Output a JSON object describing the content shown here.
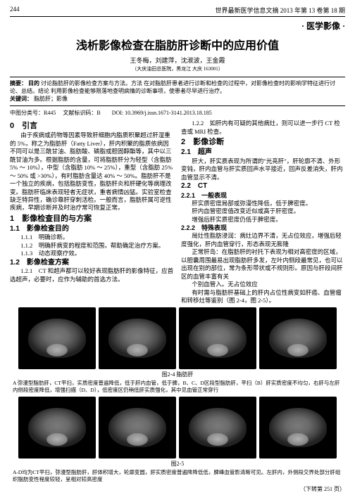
{
  "header": {
    "page_num": "244",
    "journal": "世界最新医学信息文摘 2013 年第 13 卷第 18 期"
  },
  "section_tag": "· 医学影像 ·",
  "title": "浅析影像检查在脂肪肝诊断中的应用价值",
  "authors": "王冬梅，刘建萍，沈淑波，王金霞",
  "affiliation": "（大庆油田总医院，黑龙江 大庆 163001）",
  "abstract": {
    "label_abs": "摘要：",
    "abs_label_obj": "目的",
    "abs_text": " 讨论脂肪肝的影像检查方案与方法。方法 在对脂肪肝患者进行诊断和检查的过程中，对影像检查时的影响学特征进行讨论、总结。结论 利用影像检查能够限落地查明病情的诊断事项，使患者尽早进行治疗。",
    "label_kw": "关键词：",
    "keywords": "脂肪肝；影像",
    "label_cls": "中图分类号：R445",
    "label_doc": "文献标识码：B",
    "doi": "DOI: 10.3969/j.issn.1671-3141.2013.18.185"
  },
  "left": {
    "s0_title": "0　引言",
    "s0_p1": "由于疾病或药物等因素导致肝细胞内脂质积聚超过肝湿重的 5%，称之为脂肪肝（Fatty Liver），肝内积聚的脂质依病因不同可以是三酰甘油、脂肪酸、磷脂或胆固醇酯等，其中以三酰甘油为多。根据脂肪的含量，可将脂肪肝分为轻型（含脂肪 5% ～ 10%），中型（含脂肪 10% ～ 25%），重型（含脂肪 25% ～ 50% 或 >30%），有时脂肪含量达 40% ～ 50%。脂肪肝不是一个独立的疾病，包括脂肪变性，脂肪肝炎和肝硬化等病理改变。脂肪肝临床表现轻者无症状，重者病情凶猛。实验室检查缺乏特异性，确诊靠肝穿刺活检。一般而言，脂肪肝属可逆性疾病，早期诊断并及时治疗常可恢复正常。",
    "s1_title": "1　影像检查目的与方案",
    "s11_title": "1.1　影像检查目的",
    "s111": "1.1.1　明确诊断。",
    "s112": "1.1.2　明确肝病变的程度和范围，帮助确定治疗方案。",
    "s113": "1.1.3　动态观察疗效。",
    "s12_title": "1.2　影像检查方案",
    "s121": "1.2.1　CT 和超声都可以较好表现脂肪肝的影像特征，应首选超声，必要时，应作为辅助的首选方法。"
  },
  "right": {
    "s122": "1.2.2　如肝内有可疑的其他病灶，则可以进一步行 CT 检查或 MRI 检查。",
    "s2_title": "2　影像诊断",
    "s21_title": "2.1　超声",
    "s21_p": "肝大，肝实质表现为所谓的\"光亮肝\"，肝轮廓不清、外形变钝，肝内血管与肝实质回声水平接近，回声反差消失，肝内血管显示不清。",
    "s22_title": "2.2　CT",
    "s221_title": "2.2.1　一般表现",
    "s221_a": "肝实质密度局部或弥漫性降低，低于脾密度。",
    "s221_b": "肝内血管密度值改变近似或高于肝密度。",
    "s221_c": "增强后肝实质密度仍低于脾密度。",
    "s222_title": "2.2.2　特殊表现",
    "s222_a": "局灶性脂肪浸润：病灶边界不清，无占位效应，增强后轻度强化，肝内血管穿行，形态表现无膨隆",
    "s222_p1": "正常肝岛：在脂肪肝的衬托下表现为相对高密度的区域，以胆囊周围最易出现脂肪肝多发，左叶内侧段最常见，也可以出现在别的部位，常为条形带状或不规则形。原因与肝段间肝区的血管丰富有关",
    "s222_p2": "个别血管入。无占位效应",
    "s222_p3": "有时需与脂肪肝基础上的肝内占位性病变如肝癌、血管瘤和转移灶等鉴别（图 2-4，图 2-5）。"
  },
  "fig24": {
    "caption": "图2-4 脂肪肝",
    "desc": "A 弥漫型脂肪肝，CT平扫，实质密度普遍降低，低于肝内血管，低于脾，B、C、D区段型脂肪肝，平扫（B）肝实质密度不均匀，右肝与左肝内侧段密度降低，增强扫描（D、D），低密度区仍稍低肝实质强化，其中见血管正常穿行"
  },
  "fig25": {
    "caption": "图2-5",
    "desc": "A-D均为CT平扫，弥漫型脂肪肝，肝体积增大，轮廓变圆，肝实质密度普遍降降低低，脾峰血管影清晰可见。左肝内，外侧段交界处部分肝组织脂肪变性程度较轻，呈相对较高密度"
  },
  "footer": "（下转第 251 页）"
}
